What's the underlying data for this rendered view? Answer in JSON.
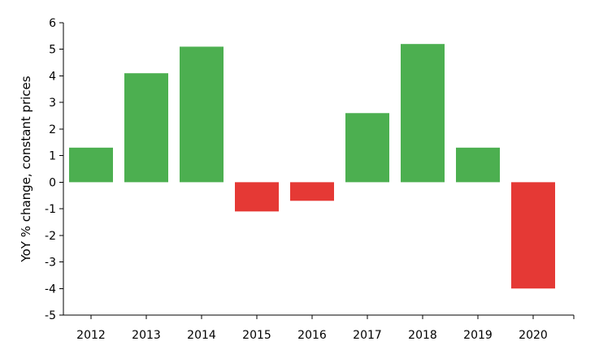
{
  "chart_data": {
    "type": "bar",
    "title": "",
    "xlabel": "",
    "ylabel": "YoY % change, constant prices",
    "categories": [
      "2012",
      "2013",
      "2014",
      "2015",
      "2016",
      "2017",
      "2018",
      "2019",
      "2020"
    ],
    "values": [
      1.3,
      4.1,
      5.1,
      -1.1,
      -0.7,
      2.6,
      5.2,
      1.3,
      -4.0
    ],
    "ylim": [
      -5,
      6
    ],
    "yticks": [
      "-5",
      "-4",
      "-3",
      "-2",
      "-1",
      "0",
      "1",
      "2",
      "3",
      "4",
      "5",
      "6"
    ],
    "grid": false,
    "legend": "none",
    "colors": {
      "positive": "#4caf50",
      "negative": "#e53935"
    }
  }
}
